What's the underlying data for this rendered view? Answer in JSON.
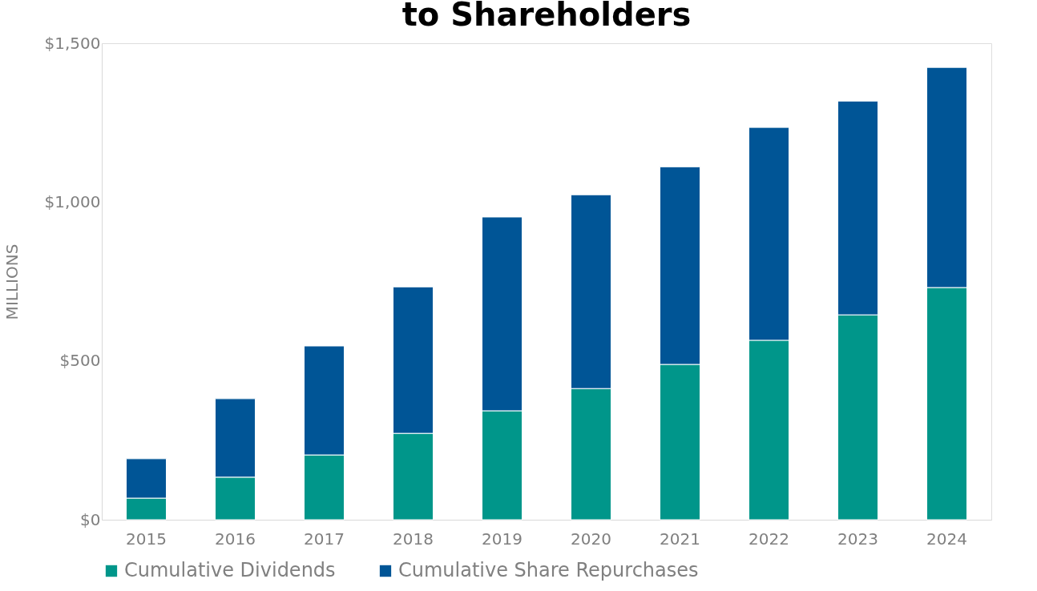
{
  "chart_data": {
    "type": "bar",
    "title": "to Shareholders",
    "ylabel": "MILLIONS",
    "categories": [
      "2015",
      "2016",
      "2017",
      "2018",
      "2019",
      "2020",
      "2021",
      "2022",
      "2023",
      "2024"
    ],
    "stacked": true,
    "series": [
      {
        "name": "Cumulative Dividends",
        "color": "#00968a",
        "values": [
          68,
          134,
          204,
          272,
          343,
          413,
          489,
          565,
          645,
          731
        ]
      },
      {
        "name": "Cumulative Share Repurchases",
        "color": "#005596",
        "values": [
          124,
          247,
          343,
          461,
          610,
          610,
          622,
          670,
          673,
          693
        ]
      }
    ],
    "ylim": [
      0,
      1500
    ],
    "yticks": [
      {
        "value": 0,
        "label": "$0"
      },
      {
        "value": 500,
        "label": "$500"
      },
      {
        "value": 1000,
        "label": "$1,000"
      },
      {
        "value": 1500,
        "label": "$1,500"
      }
    ],
    "grid": false,
    "legend": "bottom"
  }
}
